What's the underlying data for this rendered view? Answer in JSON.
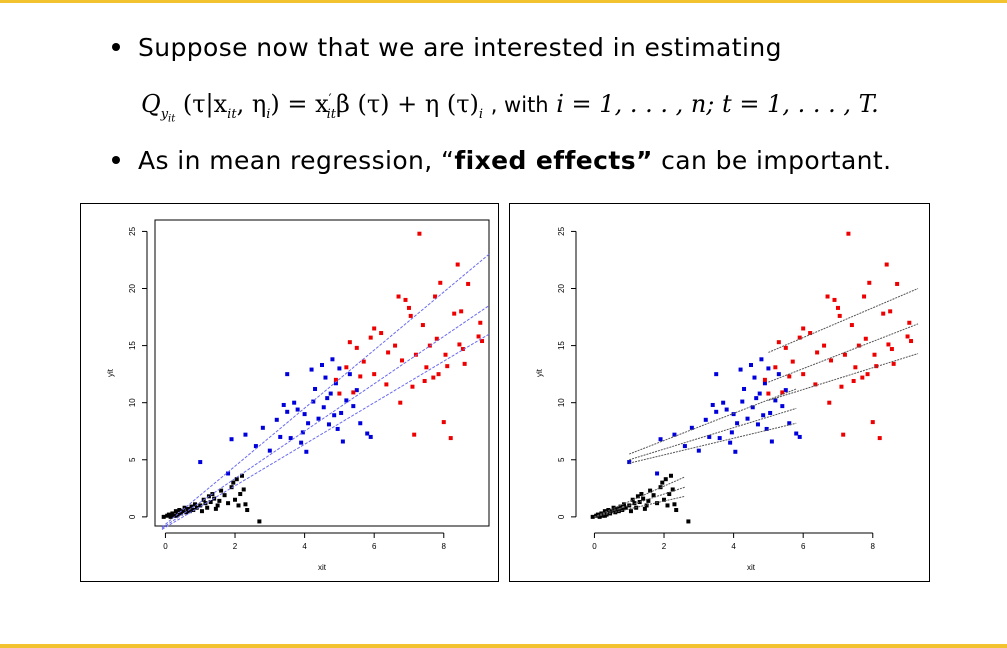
{
  "slide": {
    "bullet1": "Suppose now that we are interested in estimating",
    "formula": {
      "lhs": "Q",
      "lhs_sub": "y",
      "lhs_subsub": "it",
      "args": "(τ|x",
      "args_sub": "it",
      "args_mid": ", η",
      "args_sub2": "i",
      "args_close": ")",
      "eq": " = x",
      "x_sup": "′",
      "x_sub": "it",
      "beta": "β (τ) + η (τ)",
      "eta_sub": "i",
      "with_text": ", with",
      "i_range": "i = 1, . . . , n;",
      "t_range": "t = 1, . . . , T."
    },
    "bullet2_pre": "As in mean regression, “",
    "bullet2_bold": "fixed effects”",
    "bullet2_post": " can be important."
  },
  "chart_data": [
    {
      "type": "scatter",
      "title": "",
      "xlabel": "xit",
      "ylabel": "yit",
      "xlim": [
        -0.3,
        9.3
      ],
      "ylim": [
        -0.8,
        26
      ],
      "xticks": [
        0,
        2,
        4,
        6,
        8
      ],
      "yticks": [
        0,
        5,
        10,
        15,
        20,
        25
      ],
      "colors": {
        "group1": "#000000",
        "group2": "#0000dd",
        "group3": "#ee0000",
        "fit": "#6b6bf0"
      },
      "fit_lines": [
        {
          "x": [
            -0.1,
            9.3
          ],
          "y": [
            -0.9,
            23.0
          ]
        },
        {
          "x": [
            -0.1,
            9.3
          ],
          "y": [
            -1.0,
            18.5
          ]
        },
        {
          "x": [
            -0.1,
            9.3
          ],
          "y": [
            -1.1,
            16.0
          ]
        }
      ]
    },
    {
      "type": "scatter",
      "title": "",
      "xlabel": "xit",
      "ylabel": "yit",
      "xlim": [
        -0.3,
        9.3
      ],
      "ylim": [
        -0.8,
        26
      ],
      "xticks": [
        0,
        2,
        4,
        6,
        8
      ],
      "yticks": [
        0,
        5,
        10,
        15,
        20,
        25
      ],
      "colors": {
        "group1": "#000000",
        "group2": "#0000dd",
        "group3": "#ee0000",
        "fit": "#555555"
      },
      "fit_lines": [
        {
          "x": [
            0.0,
            2.6
          ],
          "y": [
            0.0,
            3.5
          ]
        },
        {
          "x": [
            0.0,
            2.6
          ],
          "y": [
            0.0,
            2.6
          ]
        },
        {
          "x": [
            0.0,
            2.6
          ],
          "y": [
            0.0,
            1.8
          ]
        },
        {
          "x": [
            1.0,
            5.8
          ],
          "y": [
            5.5,
            11.2
          ]
        },
        {
          "x": [
            1.0,
            5.8
          ],
          "y": [
            5.0,
            9.5
          ]
        },
        {
          "x": [
            1.0,
            5.8
          ],
          "y": [
            4.7,
            8.2
          ]
        },
        {
          "x": [
            5.0,
            9.3
          ],
          "y": [
            14.4,
            20.0
          ]
        },
        {
          "x": [
            5.0,
            9.3
          ],
          "y": [
            11.8,
            16.9
          ]
        },
        {
          "x": [
            5.0,
            9.3
          ],
          "y": [
            10.2,
            14.3
          ]
        }
      ]
    }
  ],
  "scatter_points": {
    "group1": [
      [
        -0.05,
        0
      ],
      [
        0.05,
        0.1
      ],
      [
        0.1,
        0.2
      ],
      [
        0.15,
        0
      ],
      [
        0.2,
        0.3
      ],
      [
        0.25,
        0.1
      ],
      [
        0.3,
        0.5
      ],
      [
        0.35,
        0.2
      ],
      [
        0.4,
        0.6
      ],
      [
        0.45,
        0.3
      ],
      [
        0.5,
        0.5
      ],
      [
        0.55,
        0.8
      ],
      [
        0.6,
        0.4
      ],
      [
        0.65,
        0.7
      ],
      [
        0.7,
        0.5
      ],
      [
        0.75,
        0.9
      ],
      [
        0.8,
        0.6
      ],
      [
        0.9,
        0.8
      ],
      [
        1.0,
        1.0
      ],
      [
        1.05,
        0.5
      ],
      [
        1.1,
        1.5
      ],
      [
        1.15,
        1.2
      ],
      [
        1.2,
        0.8
      ],
      [
        1.25,
        1.8
      ],
      [
        1.3,
        1.3
      ],
      [
        1.35,
        2.0
      ],
      [
        1.4,
        1.6
      ],
      [
        1.5,
        1.0
      ],
      [
        1.55,
        1.4
      ],
      [
        1.6,
        2.3
      ],
      [
        1.7,
        1.9
      ],
      [
        1.8,
        1.2
      ],
      [
        1.9,
        2.6
      ],
      [
        1.95,
        3.0
      ],
      [
        2.0,
        1.5
      ],
      [
        2.05,
        3.3
      ],
      [
        2.1,
        1.0
      ],
      [
        2.15,
        2.0
      ],
      [
        2.2,
        3.6
      ],
      [
        2.25,
        2.4
      ],
      [
        2.3,
        1.1
      ],
      [
        2.35,
        0.6
      ],
      [
        2.7,
        -0.4
      ],
      [
        0.3,
        0.1
      ],
      [
        0.85,
        1.1
      ],
      [
        1.45,
        0.7
      ]
    ],
    "group2": [
      [
        1.0,
        4.8
      ],
      [
        1.8,
        3.8
      ],
      [
        1.9,
        6.8
      ],
      [
        2.3,
        7.2
      ],
      [
        2.6,
        6.2
      ],
      [
        2.8,
        7.8
      ],
      [
        3.0,
        5.8
      ],
      [
        3.2,
        8.5
      ],
      [
        3.3,
        7.0
      ],
      [
        3.4,
        9.8
      ],
      [
        3.5,
        12.5
      ],
      [
        3.5,
        9.2
      ],
      [
        3.6,
        6.9
      ],
      [
        3.7,
        10.0
      ],
      [
        3.8,
        9.4
      ],
      [
        3.9,
        6.5
      ],
      [
        3.95,
        7.4
      ],
      [
        4.0,
        9.0
      ],
      [
        4.05,
        5.7
      ],
      [
        4.1,
        8.2
      ],
      [
        4.2,
        12.9
      ],
      [
        4.3,
        11.2
      ],
      [
        4.4,
        8.6
      ],
      [
        4.5,
        13.3
      ],
      [
        4.55,
        9.6
      ],
      [
        4.6,
        12.2
      ],
      [
        4.7,
        8.1
      ],
      [
        4.75,
        10.8
      ],
      [
        4.8,
        13.8
      ],
      [
        4.85,
        8.9
      ],
      [
        4.9,
        11.7
      ],
      [
        4.95,
        7.7
      ],
      [
        5.0,
        13.0
      ],
      [
        5.05,
        9.1
      ],
      [
        5.1,
        6.6
      ],
      [
        5.2,
        10.2
      ],
      [
        5.3,
        12.5
      ],
      [
        5.4,
        9.7
      ],
      [
        5.5,
        11.1
      ],
      [
        5.6,
        8.2
      ],
      [
        5.8,
        7.3
      ],
      [
        5.9,
        7.0
      ],
      [
        4.25,
        10.1
      ],
      [
        4.65,
        10.4
      ]
    ],
    "group3": [
      [
        4.9,
        12.0
      ],
      [
        5.0,
        10.8
      ],
      [
        5.2,
        13.1
      ],
      [
        5.3,
        15.3
      ],
      [
        5.4,
        10.9
      ],
      [
        5.5,
        14.8
      ],
      [
        5.6,
        12.3
      ],
      [
        5.7,
        13.6
      ],
      [
        5.9,
        15.7
      ],
      [
        6.0,
        16.5
      ],
      [
        6.0,
        12.5
      ],
      [
        6.2,
        16.1
      ],
      [
        6.4,
        14.4
      ],
      [
        6.6,
        15.0
      ],
      [
        6.7,
        19.3
      ],
      [
        6.75,
        10.0
      ],
      [
        6.8,
        13.7
      ],
      [
        6.9,
        19.0
      ],
      [
        7.0,
        18.3
      ],
      [
        7.05,
        17.6
      ],
      [
        7.1,
        11.4
      ],
      [
        7.15,
        7.2
      ],
      [
        7.2,
        14.2
      ],
      [
        7.3,
        24.8
      ],
      [
        7.4,
        16.8
      ],
      [
        7.5,
        13.1
      ],
      [
        7.6,
        15.0
      ],
      [
        7.7,
        12.2
      ],
      [
        7.75,
        19.3
      ],
      [
        7.8,
        15.6
      ],
      [
        7.85,
        12.5
      ],
      [
        7.9,
        20.5
      ],
      [
        8.0,
        8.3
      ],
      [
        8.05,
        14.2
      ],
      [
        8.1,
        13.2
      ],
      [
        8.2,
        6.9
      ],
      [
        8.3,
        17.8
      ],
      [
        8.4,
        22.1
      ],
      [
        8.45,
        15.1
      ],
      [
        8.5,
        18.0
      ],
      [
        8.55,
        14.7
      ],
      [
        8.6,
        13.4
      ],
      [
        8.7,
        20.4
      ],
      [
        9.0,
        15.8
      ],
      [
        9.05,
        17.0
      ],
      [
        9.1,
        15.4
      ],
      [
        6.35,
        11.6
      ],
      [
        7.45,
        11.9
      ]
    ]
  }
}
